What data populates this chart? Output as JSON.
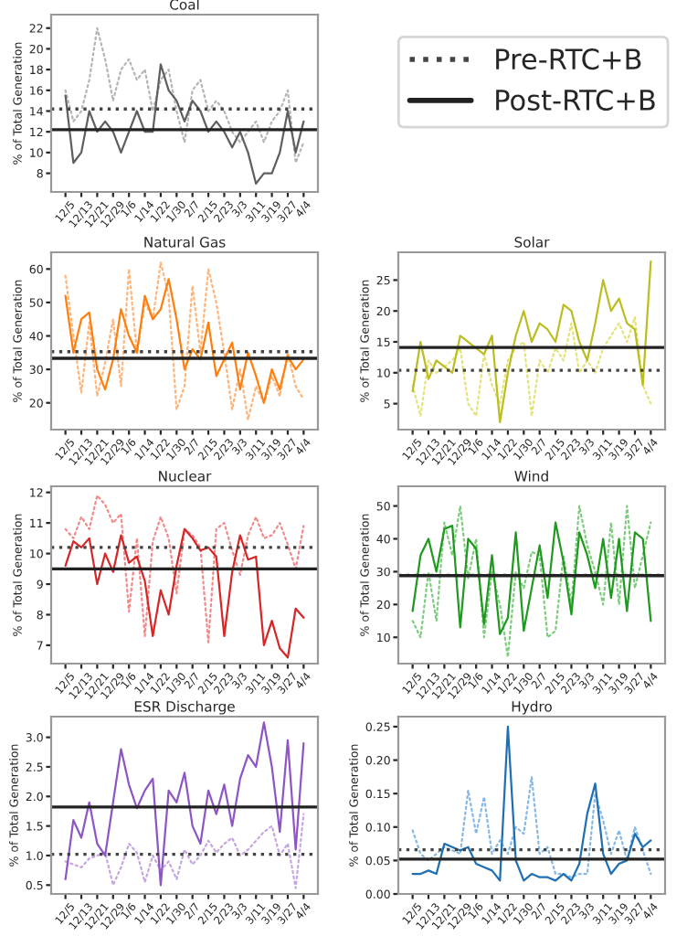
{
  "chart_data": [
    {
      "type": "line",
      "title": "Coal",
      "ylabel": "% of Total Generation",
      "legend": "right",
      "categories": [
        "12/5",
        null,
        "12/13",
        null,
        "12/21",
        null,
        "12/29",
        null,
        "1/6",
        null,
        "1/14",
        null,
        "1/22",
        null,
        "1/30",
        null,
        "2/7",
        null,
        "2/15",
        null,
        "2/23",
        null,
        "3/3",
        null,
        "3/11",
        null,
        "3/19",
        null,
        "3/27",
        null,
        "4/4"
      ],
      "ylim": [
        6.2,
        23.3
      ],
      "yticks": [
        8,
        10,
        12,
        14,
        16,
        18,
        20,
        22
      ],
      "series": [
        {
          "color": "#b5b5b5",
          "line_style": "dotted",
          "values": [
            16,
            13,
            14,
            17,
            22,
            19,
            15,
            18,
            19,
            17,
            18,
            14,
            17,
            18,
            14,
            11,
            16,
            17,
            14,
            15,
            14,
            12,
            11,
            12,
            13,
            11,
            13,
            14,
            16,
            9,
            11
          ]
        },
        {
          "color": "#5f5f5f",
          "line_style": "solid",
          "values": [
            15.5,
            9,
            10,
            14,
            12,
            13,
            12,
            10,
            12,
            14,
            12,
            12,
            18.5,
            16,
            15,
            13,
            15,
            14,
            12,
            13,
            12,
            10.5,
            12,
            10,
            7,
            8,
            8,
            10,
            14,
            10,
            13
          ]
        }
      ],
      "ref_lines": [
        {
          "axis": "y",
          "value": 14.2,
          "color": "#444444",
          "line_style": "dotted",
          "label": "Pre-RTC+B"
        },
        {
          "axis": "y",
          "value": 12.2,
          "color": "#222222",
          "line_style": "solid",
          "label": "Post-RTC+B"
        }
      ]
    },
    {
      "type": "line",
      "title": "Natural Gas",
      "ylabel": "% of Total Generation",
      "categories": [
        "12/5",
        null,
        "12/13",
        null,
        "12/21",
        null,
        "12/29",
        null,
        "1/6",
        null,
        "1/14",
        null,
        "1/22",
        null,
        "1/30",
        null,
        "2/7",
        null,
        "2/15",
        null,
        "2/23",
        null,
        "3/3",
        null,
        "3/11",
        null,
        "3/19",
        null,
        "3/27",
        null,
        "4/4"
      ],
      "ylim": [
        12,
        65
      ],
      "yticks": [
        20,
        30,
        40,
        50,
        60
      ],
      "series": [
        {
          "color": "#ffb47a",
          "line_style": "dotted",
          "values": [
            58,
            40,
            23,
            44,
            22,
            32,
            45,
            25,
            60,
            35,
            50,
            45,
            62,
            52,
            18,
            25,
            55,
            35,
            60,
            50,
            35,
            18,
            30,
            15,
            25,
            20,
            28,
            22,
            35,
            25,
            21
          ]
        },
        {
          "color": "#ff7f0e",
          "line_style": "solid",
          "values": [
            52,
            35,
            45,
            47,
            30,
            24,
            33,
            48,
            40,
            35,
            52,
            45,
            48,
            57,
            45,
            30,
            36,
            33,
            44,
            28,
            33,
            38,
            24,
            35,
            28,
            20,
            30,
            24,
            34,
            30,
            33
          ]
        }
      ],
      "ref_lines": [
        {
          "axis": "y",
          "value": 35.3,
          "color": "#444444",
          "line_style": "dotted"
        },
        {
          "axis": "y",
          "value": 33.3,
          "color": "#222222",
          "line_style": "solid"
        }
      ]
    },
    {
      "type": "line",
      "title": "Solar",
      "ylabel": "% of Total Generation",
      "categories": [
        "12/5",
        null,
        "12/13",
        null,
        "12/21",
        null,
        "12/29",
        null,
        "1/6",
        null,
        "1/14",
        null,
        "1/22",
        null,
        "1/30",
        null,
        "2/7",
        null,
        "2/15",
        null,
        "2/23",
        null,
        "3/3",
        null,
        "3/11",
        null,
        "3/19",
        null,
        "3/27",
        null,
        "4/4"
      ],
      "ylim": [
        0.8,
        29.5
      ],
      "yticks": [
        5,
        10,
        15,
        20,
        25
      ],
      "series": [
        {
          "color": "#e3e37a",
          "line_style": "dotted",
          "values": [
            8,
            3,
            12,
            10,
            11,
            12,
            14,
            5,
            3,
            13,
            8,
            5,
            12,
            14,
            15,
            3,
            12,
            10,
            14,
            12,
            18,
            10,
            12,
            10,
            14,
            16,
            18,
            15,
            19,
            8,
            5
          ]
        },
        {
          "color": "#bcbd22",
          "line_style": "solid",
          "values": [
            7,
            15,
            9,
            12,
            11,
            10,
            16,
            15,
            14,
            13,
            16,
            2,
            10,
            16,
            20,
            15,
            18,
            17,
            15,
            21,
            20,
            15,
            12,
            18,
            25,
            20,
            22,
            18,
            17,
            8,
            28
          ]
        }
      ],
      "ref_lines": [
        {
          "axis": "y",
          "value": 10.4,
          "color": "#444444",
          "line_style": "dotted"
        },
        {
          "axis": "y",
          "value": 14.1,
          "color": "#222222",
          "line_style": "solid"
        }
      ]
    },
    {
      "type": "line",
      "title": "Nuclear",
      "ylabel": "% of Total Generation",
      "categories": [
        "12/5",
        null,
        "12/13",
        null,
        "12/21",
        null,
        "12/29",
        null,
        "1/6",
        null,
        "1/14",
        null,
        "1/22",
        null,
        "1/30",
        null,
        "2/7",
        null,
        "2/15",
        null,
        "2/23",
        null,
        "3/3",
        null,
        "3/11",
        null,
        "3/19",
        null,
        "3/27",
        null,
        "4/4"
      ],
      "ylim": [
        6.4,
        12.2
      ],
      "yticks": [
        7,
        8,
        9,
        10,
        11,
        12
      ],
      "series": [
        {
          "color": "#f28a8a",
          "line_style": "dotted",
          "values": [
            10.8,
            10.5,
            11.2,
            10.8,
            11.9,
            11.6,
            11.0,
            11.3,
            8.1,
            10.5,
            7.3,
            10.4,
            11.2,
            10.5,
            8.7,
            10.8,
            10.6,
            10.2,
            7.1,
            10.8,
            11.0,
            10.1,
            9.3,
            10.6,
            11.2,
            10.5,
            10.6,
            11.0,
            10.3,
            9.5,
            10.9
          ]
        },
        {
          "color": "#d62728",
          "line_style": "solid",
          "values": [
            9.6,
            10.4,
            10.2,
            10.5,
            9.0,
            10.0,
            9.4,
            10.6,
            9.7,
            9.9,
            9.1,
            7.3,
            8.8,
            8.0,
            9.6,
            10.8,
            10.5,
            10.1,
            10.2,
            9.9,
            7.3,
            9.4,
            10.6,
            9.8,
            9.9,
            7.0,
            7.8,
            6.9,
            6.6,
            8.2,
            7.9
          ]
        }
      ],
      "ref_lines": [
        {
          "axis": "y",
          "value": 10.2,
          "color": "#444444",
          "line_style": "dotted"
        },
        {
          "axis": "y",
          "value": 9.5,
          "color": "#222222",
          "line_style": "solid"
        }
      ]
    },
    {
      "type": "line",
      "title": "Wind",
      "ylabel": "% of Total Generation",
      "categories": [
        "12/5",
        null,
        "12/13",
        null,
        "12/21",
        null,
        "12/29",
        null,
        "1/6",
        null,
        "1/14",
        null,
        "1/22",
        null,
        "1/30",
        null,
        "2/7",
        null,
        "2/15",
        null,
        "2/23",
        null,
        "3/3",
        null,
        "3/11",
        null,
        "3/19",
        null,
        "3/27",
        null,
        "4/4"
      ],
      "ylim": [
        2,
        56
      ],
      "yticks": [
        10,
        20,
        30,
        40,
        50
      ],
      "series": [
        {
          "color": "#7fcb7f",
          "line_style": "dotted",
          "values": [
            15,
            10,
            30,
            15,
            45,
            35,
            50,
            28,
            40,
            10,
            30,
            20,
            4,
            30,
            25,
            36,
            35,
            10,
            12,
            35,
            20,
            50,
            38,
            30,
            20,
            45,
            20,
            50,
            25,
            35,
            45
          ]
        },
        {
          "color": "#1f9a1f",
          "line_style": "solid",
          "values": [
            18,
            35,
            40,
            30,
            43,
            44,
            13,
            40,
            37,
            14,
            35,
            11,
            16,
            42,
            12,
            25,
            38,
            22,
            45,
            33,
            17,
            42,
            35,
            25,
            40,
            22,
            40,
            18,
            42,
            40,
            15
          ]
        }
      ],
      "ref_lines": [
        {
          "axis": "y",
          "value": 28.9,
          "color": "#444444",
          "line_style": "dotted"
        },
        {
          "axis": "y",
          "value": 28.8,
          "color": "#222222",
          "line_style": "solid"
        }
      ]
    },
    {
      "type": "line",
      "title": "ESR Discharge",
      "ylabel": "% of Total Generation",
      "categories": [
        "12/5",
        null,
        "12/13",
        null,
        "12/21",
        null,
        "12/29",
        null,
        "1/6",
        null,
        "1/14",
        null,
        "1/22",
        null,
        "1/30",
        null,
        "2/7",
        null,
        "2/15",
        null,
        "2/23",
        null,
        "3/3",
        null,
        "3/11",
        null,
        "3/19",
        null,
        "3/27",
        null,
        "4/4"
      ],
      "ylim": [
        0.35,
        3.35
      ],
      "yticks": [
        {
          "value": 0.5,
          "label": "0.5"
        },
        {
          "value": 1.0,
          "label": "1.0"
        },
        {
          "value": 1.5,
          "label": "1.5"
        },
        {
          "value": 2.0,
          "label": "2.0"
        },
        {
          "value": 2.5,
          "label": "2.5"
        },
        {
          "value": 3.0,
          "label": "3.0"
        }
      ],
      "series": [
        {
          "color": "#c6a6e2",
          "line_style": "dotted",
          "values": [
            0.9,
            0.85,
            0.8,
            0.95,
            1.0,
            1.05,
            0.5,
            0.8,
            1.2,
            1.05,
            0.55,
            1.0,
            0.75,
            0.9,
            0.6,
            1.1,
            0.85,
            1.0,
            1.25,
            1.05,
            1.2,
            1.3,
            1.0,
            1.1,
            1.25,
            1.4,
            1.5,
            1.0,
            1.2,
            0.45,
            1.7
          ]
        },
        {
          "color": "#8e55c4",
          "line_style": "solid",
          "values": [
            0.6,
            1.6,
            1.3,
            1.9,
            1.2,
            1.0,
            1.9,
            2.8,
            2.2,
            1.8,
            2.1,
            2.3,
            0.5,
            2.1,
            1.9,
            2.4,
            1.5,
            1.2,
            2.1,
            1.7,
            2.2,
            1.5,
            2.3,
            2.7,
            2.5,
            3.25,
            2.5,
            1.4,
            2.95,
            1.1,
            2.9
          ]
        }
      ],
      "ref_lines": [
        {
          "axis": "y",
          "value": 1.02,
          "color": "#444444",
          "line_style": "dotted"
        },
        {
          "axis": "y",
          "value": 1.82,
          "color": "#222222",
          "line_style": "solid"
        }
      ]
    },
    {
      "type": "line",
      "title": "Hydro",
      "ylabel": "% of Total Generation",
      "categories": [
        "12/5",
        null,
        "12/13",
        null,
        "12/21",
        null,
        "12/29",
        null,
        "1/6",
        null,
        "1/14",
        null,
        "1/22",
        null,
        "1/30",
        null,
        "2/7",
        null,
        "2/15",
        null,
        "2/23",
        null,
        "3/3",
        null,
        "3/11",
        null,
        "3/19",
        null,
        "3/27",
        null,
        "4/4"
      ],
      "ylim": [
        0,
        0.265
      ],
      "yticks": [
        {
          "value": 0,
          "label": "0.00"
        },
        {
          "value": 0.05,
          "label": "0.05"
        },
        {
          "value": 0.1,
          "label": "0.10"
        },
        {
          "value": 0.15,
          "label": "0.15"
        },
        {
          "value": 0.2,
          "label": "0.20"
        },
        {
          "value": 0.25,
          "label": "0.25"
        }
      ],
      "series": [
        {
          "color": "#86b8e6",
          "line_style": "dotted",
          "values": [
            0.095,
            0.06,
            0.05,
            0.06,
            0.07,
            0.065,
            0.06,
            0.155,
            0.09,
            0.145,
            0.06,
            0.08,
            0.06,
            0.1,
            0.09,
            0.175,
            0.06,
            0.07,
            0.03,
            0.03,
            0.025,
            0.03,
            0.03,
            0.15,
            0.11,
            0.06,
            0.095,
            0.05,
            0.1,
            0.065,
            0.03
          ]
        },
        {
          "color": "#1f6fb4",
          "line_style": "solid",
          "values": [
            0.03,
            0.03,
            0.035,
            0.03,
            0.075,
            0.07,
            0.065,
            0.07,
            0.045,
            0.04,
            0.035,
            0.02,
            0.25,
            0.05,
            0.02,
            0.03,
            0.025,
            0.025,
            0.02,
            0.03,
            0.02,
            0.045,
            0.12,
            0.165,
            0.06,
            0.03,
            0.045,
            0.05,
            0.09,
            0.07,
            0.08
          ]
        }
      ],
      "ref_lines": [
        {
          "axis": "y",
          "value": 0.066,
          "color": "#444444",
          "line_style": "dotted"
        },
        {
          "axis": "y",
          "value": 0.052,
          "color": "#222222",
          "line_style": "solid"
        }
      ]
    }
  ]
}
